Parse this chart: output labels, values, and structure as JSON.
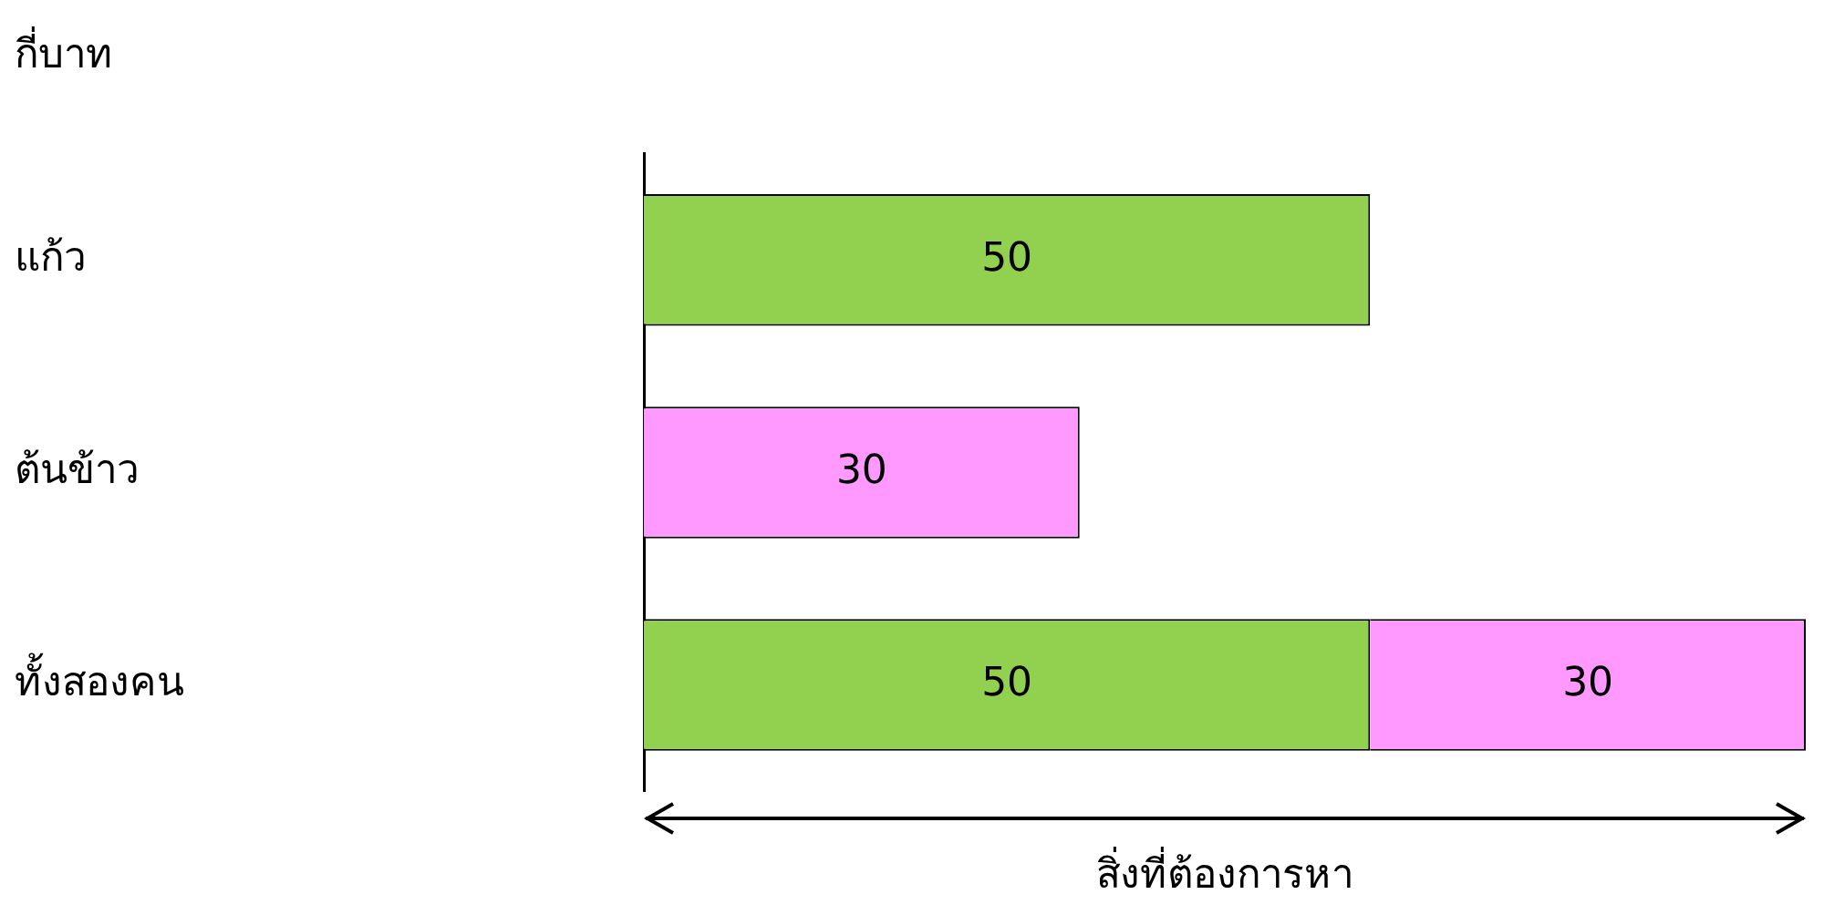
{
  "chart_data": {
    "type": "bar",
    "orientation": "horizontal",
    "stacked": true,
    "ylabel": "กี่บาท",
    "categories": [
      "แก้ว",
      "ต้นข้าว",
      "ทั้งสองคน"
    ],
    "xlim": [
      0,
      80
    ],
    "series": [
      {
        "color": "#92d050",
        "values": [
          50,
          null,
          50
        ]
      },
      {
        "color": "#ff99ff",
        "values": [
          null,
          30,
          30
        ]
      }
    ],
    "data_labels": true,
    "annotations": [
      "สิ่งที่ต้องการหา"
    ]
  }
}
